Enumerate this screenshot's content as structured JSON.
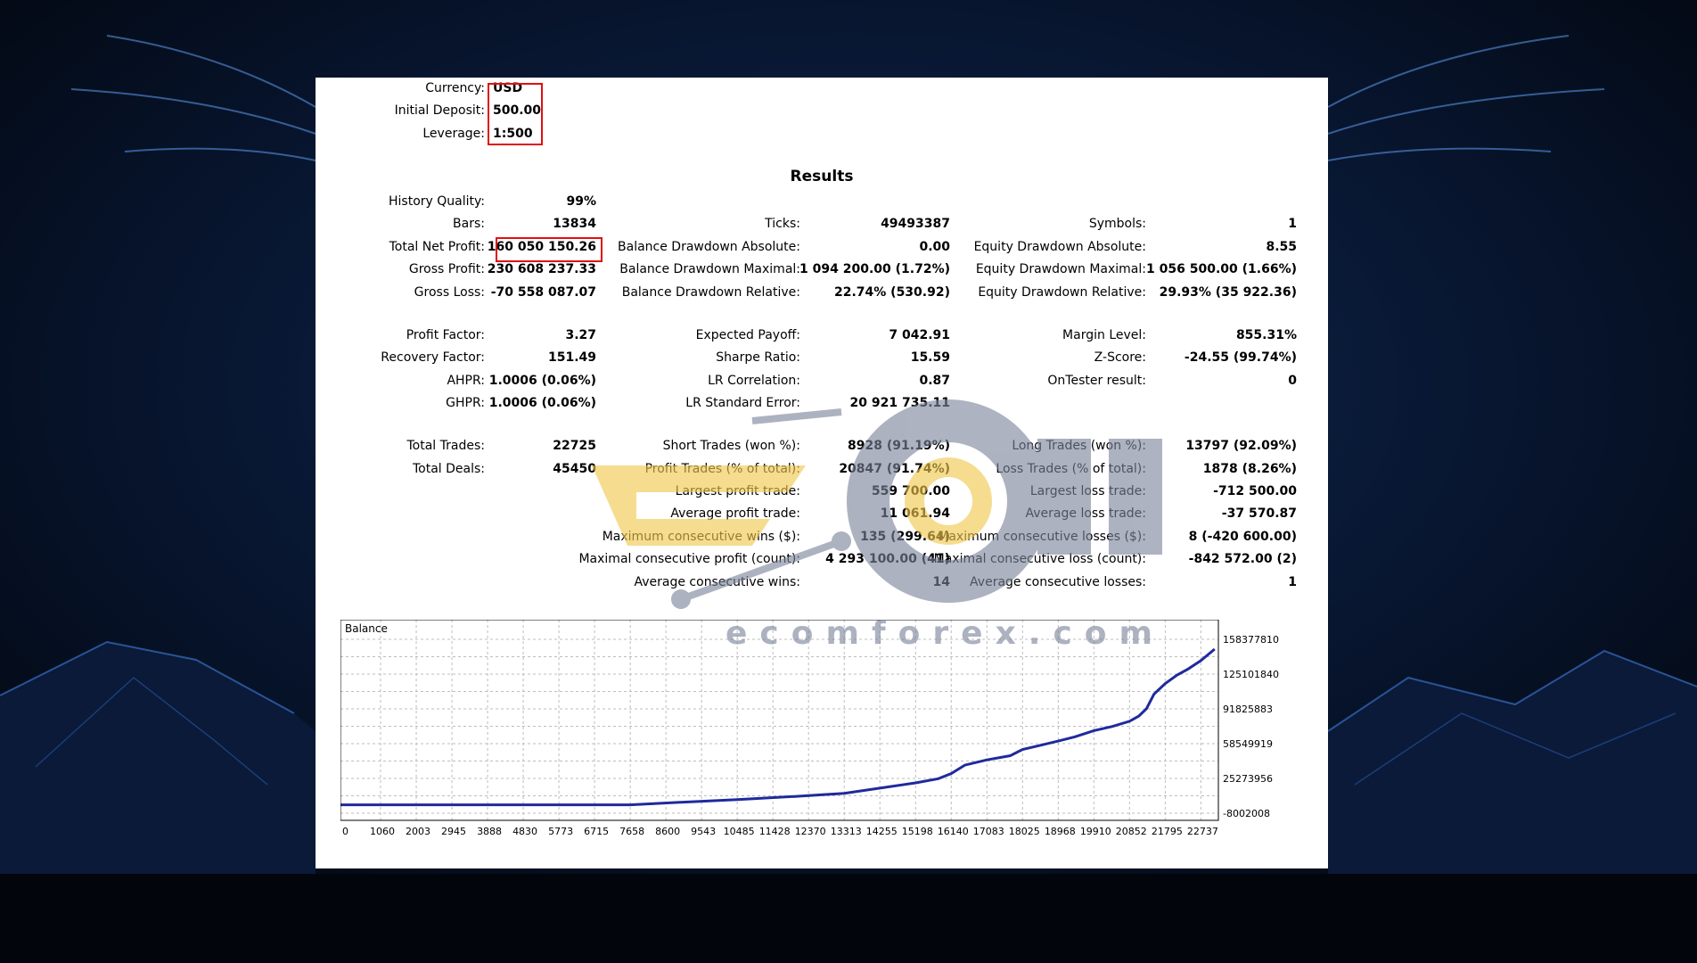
{
  "settings": [
    {
      "label": "Currency:",
      "value": "USD"
    },
    {
      "label": "Initial Deposit:",
      "value": "500.00"
    },
    {
      "label": "Leverage:",
      "value": "1:500"
    }
  ],
  "results_title": "Results",
  "col1": [
    {
      "label": "History Quality:",
      "value": "99%"
    },
    {
      "label": "Bars:",
      "value": "13834"
    },
    {
      "label": "Total Net Profit:",
      "value": "160 050 150.26"
    },
    {
      "label": "Gross Profit:",
      "value": "230 608 237.33"
    },
    {
      "label": "Gross Loss:",
      "value": "-70 558 087.07"
    },
    {
      "label": "Profit Factor:",
      "value": "3.27"
    },
    {
      "label": "Recovery Factor:",
      "value": "151.49"
    },
    {
      "label": "AHPR:",
      "value": "1.0006 (0.06%)"
    },
    {
      "label": "GHPR:",
      "value": "1.0006 (0.06%)"
    },
    {
      "label": "Total Trades:",
      "value": "22725"
    },
    {
      "label": "Total Deals:",
      "value": "45450"
    }
  ],
  "col2": [
    {
      "label": "Ticks:",
      "value": "49493387"
    },
    {
      "label": "Balance Drawdown Absolute:",
      "value": "0.00"
    },
    {
      "label": "Balance Drawdown Maximal:",
      "value": "1 094 200.00 (1.72%)"
    },
    {
      "label": "Balance Drawdown Relative:",
      "value": "22.74% (530.92)"
    },
    {
      "label": "Expected Payoff:",
      "value": "7 042.91"
    },
    {
      "label": "Sharpe Ratio:",
      "value": "15.59"
    },
    {
      "label": "LR Correlation:",
      "value": "0.87"
    },
    {
      "label": "LR Standard Error:",
      "value": "20 921 735.11"
    },
    {
      "label": "Short Trades (won %):",
      "value": "8928 (91.19%)"
    },
    {
      "label": "Profit Trades (% of total):",
      "value": "20847 (91.74%)"
    },
    {
      "label": "Largest profit trade:",
      "value": "559 700.00"
    },
    {
      "label": "Average profit trade:",
      "value": "11 061.94"
    },
    {
      "label": "Maximum consecutive wins ($):",
      "value": "135 (299.64)"
    },
    {
      "label": "Maximal consecutive profit (count):",
      "value": "4 293 100.00 (41)"
    },
    {
      "label": "Average consecutive wins:",
      "value": "14"
    }
  ],
  "col3": [
    {
      "label": "Symbols:",
      "value": "1"
    },
    {
      "label": "Equity Drawdown Absolute:",
      "value": "8.55"
    },
    {
      "label": "Equity Drawdown Maximal:",
      "value": "1 056 500.00 (1.66%)"
    },
    {
      "label": "Equity Drawdown Relative:",
      "value": "29.93% (35 922.36)"
    },
    {
      "label": "Margin Level:",
      "value": "855.31%"
    },
    {
      "label": "Z-Score:",
      "value": "-24.55 (99.74%)"
    },
    {
      "label": "OnTester result:",
      "value": "0"
    },
    {
      "label": "Long Trades (won %):",
      "value": "13797 (92.09%)"
    },
    {
      "label": "Loss Trades (% of total):",
      "value": "1878 (8.26%)"
    },
    {
      "label": "Largest loss trade:",
      "value": "-712 500.00"
    },
    {
      "label": "Average loss trade:",
      "value": "-37 570.87"
    },
    {
      "label": "Maximum consecutive losses ($):",
      "value": "8 (-420 600.00)"
    },
    {
      "label": "Maximal consecutive loss (count):",
      "value": "-842 572.00 (2)"
    },
    {
      "label": "Average consecutive losses:",
      "value": "1"
    }
  ],
  "chart_data": {
    "type": "line",
    "title": "Balance",
    "x_ticks": [
      "0",
      "1060",
      "2003",
      "2945",
      "3888",
      "4830",
      "5773",
      "6715",
      "7658",
      "8600",
      "9543",
      "10485",
      "11428",
      "12370",
      "13313",
      "14255",
      "15198",
      "16140",
      "17083",
      "18025",
      "18968",
      "19910",
      "20852",
      "21795",
      "22737"
    ],
    "y_ticks": [
      "158377810",
      "125101840",
      "91825883",
      "58549919",
      "25273956",
      "-8002008"
    ],
    "y_tick_values": [
      158377810,
      125101840,
      91825883,
      58549919,
      25273956,
      -8002008
    ],
    "xlim": [
      0,
      23200
    ],
    "ylim": [
      -8002008,
      158377810
    ],
    "grid": true,
    "series": [
      {
        "color": "#1f2a9c",
        "x": [
          0,
          2000,
          4000,
          6000,
          7658,
          9000,
          10485,
          12000,
          13313,
          14255,
          15198,
          15800,
          16140,
          16500,
          17083,
          17700,
          18025,
          18500,
          18968,
          19400,
          19910,
          20400,
          20852,
          21100,
          21300,
          21500,
          21795,
          22100,
          22400,
          22737,
          23100
        ],
        "y": [
          500,
          500,
          500,
          500,
          500,
          2500000,
          5000000,
          8000000,
          11000000,
          16000000,
          21000000,
          25000000,
          30000000,
          38000000,
          43000000,
          47000000,
          53000000,
          57000000,
          61000000,
          65000000,
          71000000,
          75000000,
          80000000,
          85000000,
          92000000,
          106000000,
          116000000,
          124000000,
          130000000,
          138000000,
          149000000
        ]
      }
    ]
  },
  "watermark": {
    "brand_text": "ecomforex.com",
    "colors": {
      "gold": "#f2c84b",
      "gray": "#7a849a"
    }
  },
  "colors": {
    "highlight_box": "#e01010",
    "background": "#050b18"
  }
}
